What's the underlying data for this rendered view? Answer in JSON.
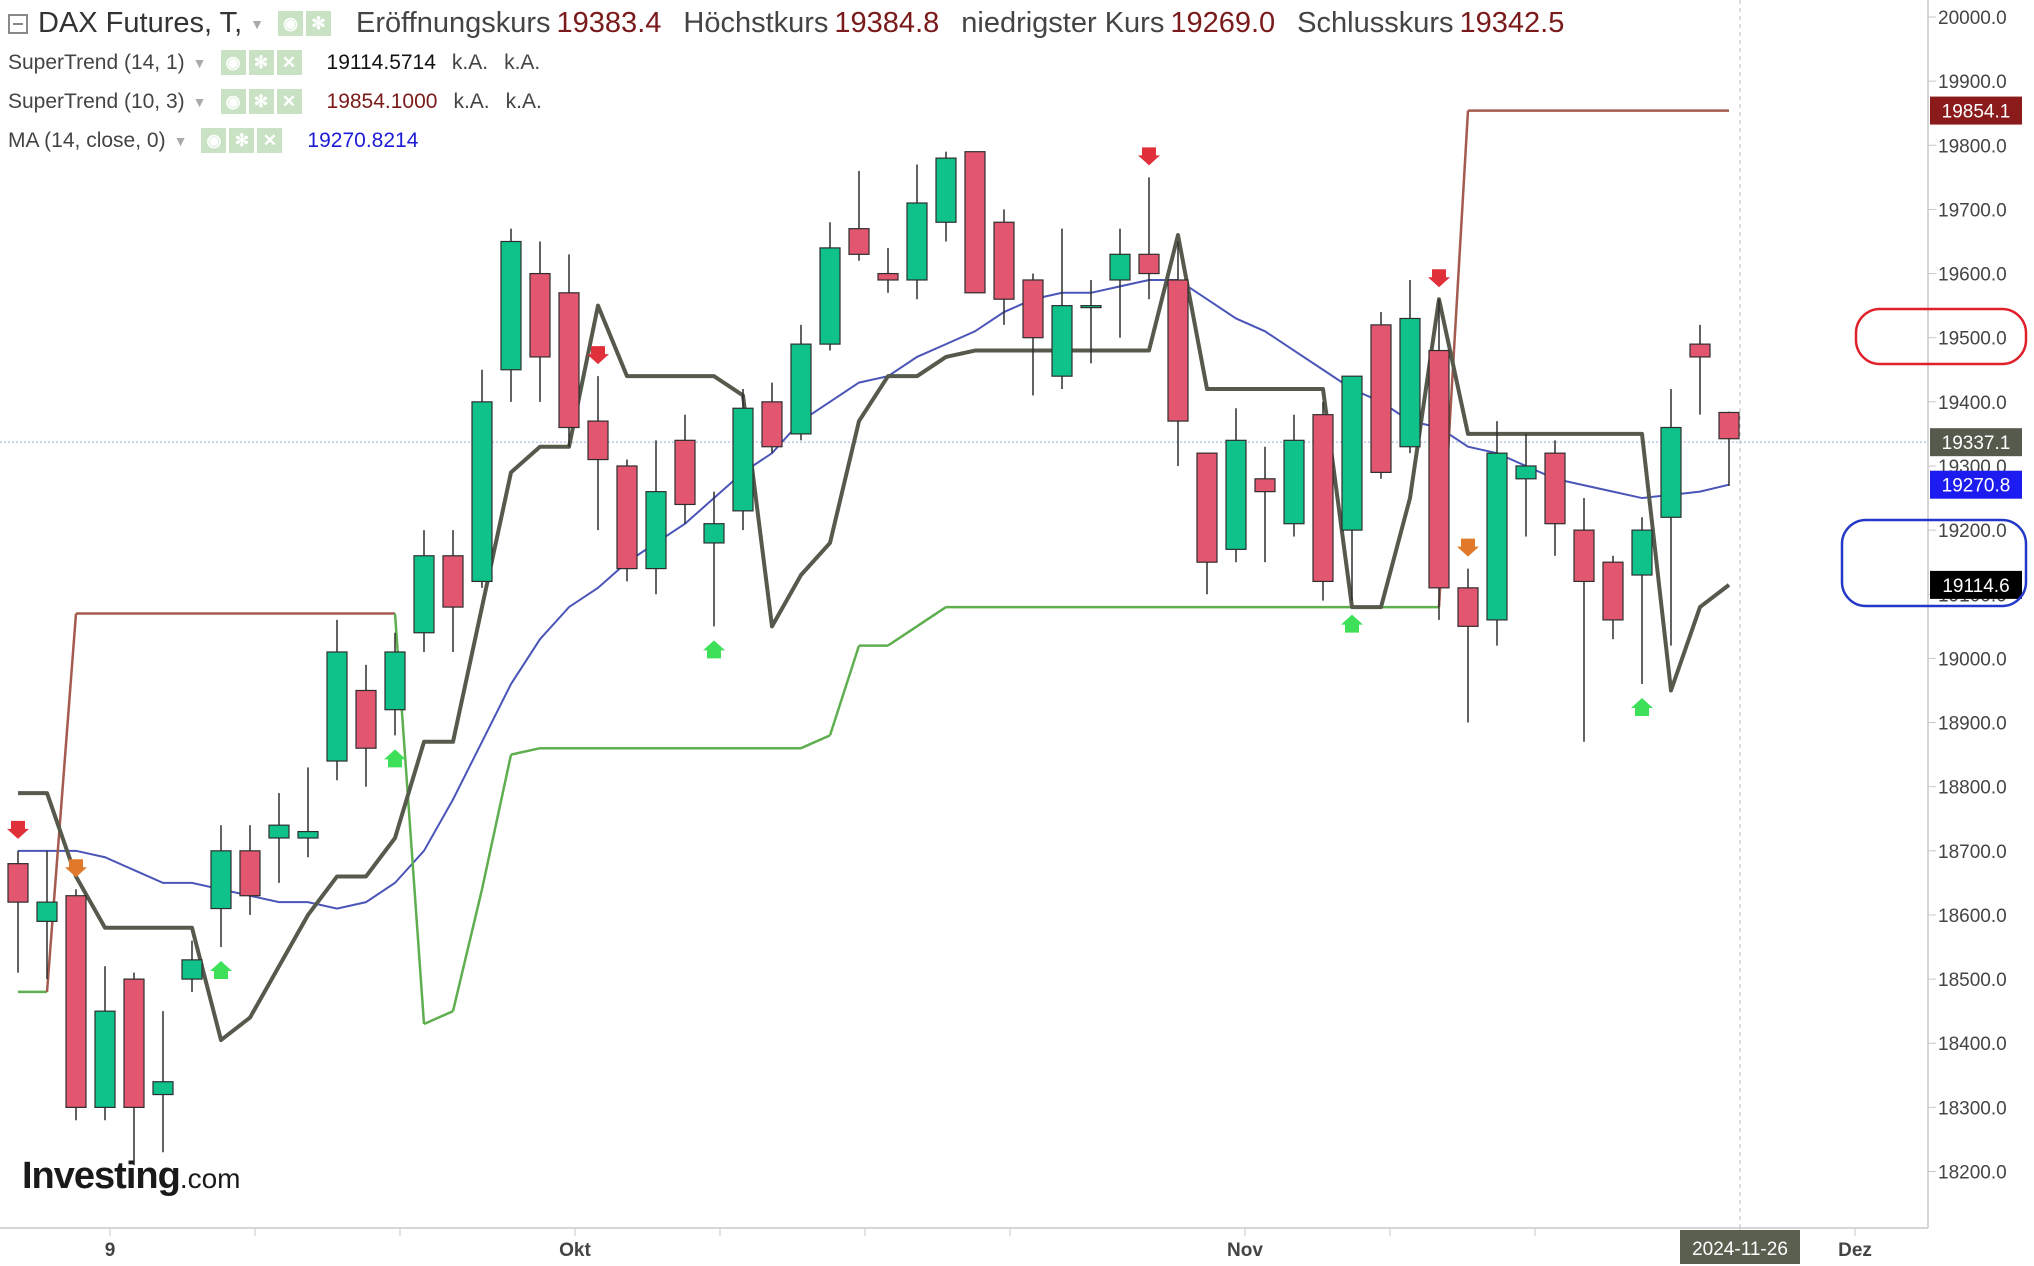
{
  "header": {
    "symbol_title": "DAX Futures, T,",
    "ohlc": [
      {
        "label": "Eröffnungskurs",
        "value": "19383.4"
      },
      {
        "label": "Höchstkurs",
        "value": "19384.8"
      },
      {
        "label": "niedrigster Kurs",
        "value": "19269.0"
      },
      {
        "label": "Schlusskurs",
        "value": "19342.5"
      }
    ]
  },
  "indicators": [
    {
      "label": "SuperTrend (14, 1)",
      "value": "19114.5714",
      "extra1": "k.A.",
      "extra2": "k.A.",
      "color": "#111111"
    },
    {
      "label": "SuperTrend (10, 3)",
      "value": "19854.1000",
      "extra1": "k.A.",
      "extra2": "k.A.",
      "color": "#7a1a1a"
    },
    {
      "label": "MA (14, close, 0)",
      "value": "19270.8214",
      "color": "#1c1cd6"
    }
  ],
  "icons": [
    "collapse-icon",
    "eye-icon",
    "gear-icon",
    "close-icon",
    "caret-down-icon"
  ],
  "logo": {
    "main": "Investing",
    "suffix": ".com"
  },
  "colors": {
    "up_candle": "#0ec28a",
    "down_candle": "#e2576f",
    "supertrend_fast": "#555a4c",
    "supertrend_slow_up": "#5fae4f",
    "supertrend_slow_down": "#a55a4f",
    "moving_average": "#4a55b8",
    "current_price": "#555a4c",
    "annotation_red": "#e0202a",
    "annotation_blue": "#2438c8"
  },
  "chart_data": {
    "type": "candlestick",
    "ylim": [
      18100,
      20100
    ],
    "y_ticks": [
      20000,
      19900,
      19800,
      19700,
      19600,
      19500,
      19400,
      19300,
      19200,
      19100,
      19000,
      18900,
      18800,
      18700,
      18600,
      18500,
      18400,
      18300,
      18200
    ],
    "y_tick_labels": [
      "20000.0",
      "19900.0",
      "19800.0",
      "19700.0",
      "19600.0",
      "19500.0",
      "19400.0",
      "19300.0",
      "19200.0",
      "19100.0",
      "19000.0",
      "18900.0",
      "18800.0",
      "18700.0",
      "18600.0",
      "18500.0",
      "18400.0",
      "18300.0",
      "18200.0"
    ],
    "x_tick_labels": [
      "9",
      "Okt",
      "Nov",
      "2024-11-26",
      "Dez"
    ],
    "price_tags": [
      {
        "value": 19854.1,
        "label": "19854.1",
        "color": "#8b1a1a"
      },
      {
        "value": 19337.1,
        "label": "19337.1",
        "color": "#555a4c"
      },
      {
        "value": 19270.8,
        "label": "19270.8",
        "color": "#1c1cf0"
      },
      {
        "value": 19114.6,
        "label": "19114.6",
        "color": "#000000"
      }
    ],
    "candles": [
      {
        "o": 18680,
        "h": 18700,
        "l": 18510,
        "c": 18620
      },
      {
        "o": 18590,
        "h": 18700,
        "l": 18500,
        "c": 18620
      },
      {
        "o": 18630,
        "h": 18640,
        "l": 18280,
        "c": 18300
      },
      {
        "o": 18300,
        "h": 18520,
        "l": 18280,
        "c": 18450
      },
      {
        "o": 18500,
        "h": 18510,
        "l": 18210,
        "c": 18300
      },
      {
        "o": 18320,
        "h": 18450,
        "l": 18230,
        "c": 18340
      },
      {
        "o": 18500,
        "h": 18560,
        "l": 18480,
        "c": 18530
      },
      {
        "o": 18610,
        "h": 18740,
        "l": 18550,
        "c": 18700
      },
      {
        "o": 18700,
        "h": 18740,
        "l": 18600,
        "c": 18630
      },
      {
        "o": 18720,
        "h": 18790,
        "l": 18650,
        "c": 18740
      },
      {
        "o": 18720,
        "h": 18830,
        "l": 18690,
        "c": 18730
      },
      {
        "o": 18840,
        "h": 19060,
        "l": 18810,
        "c": 19010
      },
      {
        "o": 18950,
        "h": 18990,
        "l": 18800,
        "c": 18860
      },
      {
        "o": 18920,
        "h": 19040,
        "l": 18880,
        "c": 19010
      },
      {
        "o": 19040,
        "h": 19200,
        "l": 19010,
        "c": 19160
      },
      {
        "o": 19160,
        "h": 19200,
        "l": 19010,
        "c": 19080
      },
      {
        "o": 19120,
        "h": 19450,
        "l": 19110,
        "c": 19400
      },
      {
        "o": 19450,
        "h": 19670,
        "l": 19400,
        "c": 19650
      },
      {
        "o": 19600,
        "h": 19650,
        "l": 19400,
        "c": 19470
      },
      {
        "o": 19570,
        "h": 19630,
        "l": 19330,
        "c": 19360
      },
      {
        "o": 19370,
        "h": 19440,
        "l": 19200,
        "c": 19310
      },
      {
        "o": 19300,
        "h": 19310,
        "l": 19120,
        "c": 19140
      },
      {
        "o": 19140,
        "h": 19340,
        "l": 19100,
        "c": 19260
      },
      {
        "o": 19340,
        "h": 19380,
        "l": 19210,
        "c": 19240
      },
      {
        "o": 19180,
        "h": 19260,
        "l": 19050,
        "c": 19210
      },
      {
        "o": 19230,
        "h": 19420,
        "l": 19200,
        "c": 19390
      },
      {
        "o": 19400,
        "h": 19430,
        "l": 19320,
        "c": 19330
      },
      {
        "o": 19350,
        "h": 19520,
        "l": 19340,
        "c": 19490
      },
      {
        "o": 19490,
        "h": 19680,
        "l": 19480,
        "c": 19640
      },
      {
        "o": 19670,
        "h": 19760,
        "l": 19620,
        "c": 19630
      },
      {
        "o": 19600,
        "h": 19640,
        "l": 19570,
        "c": 19590
      },
      {
        "o": 19590,
        "h": 19770,
        "l": 19560,
        "c": 19710
      },
      {
        "o": 19680,
        "h": 19790,
        "l": 19650,
        "c": 19780
      },
      {
        "o": 19790,
        "h": 19790,
        "l": 19580,
        "c": 19570
      },
      {
        "o": 19680,
        "h": 19700,
        "l": 19520,
        "c": 19560
      },
      {
        "o": 19590,
        "h": 19600,
        "l": 19410,
        "c": 19500
      },
      {
        "o": 19440,
        "h": 19670,
        "l": 19420,
        "c": 19550
      },
      {
        "o": 19550,
        "h": 19590,
        "l": 19460,
        "c": 19550
      },
      {
        "o": 19590,
        "h": 19670,
        "l": 19500,
        "c": 19630
      },
      {
        "o": 19630,
        "h": 19750,
        "l": 19560,
        "c": 19600
      },
      {
        "o": 19590,
        "h": 19650,
        "l": 19300,
        "c": 19370
      },
      {
        "o": 19320,
        "h": 19320,
        "l": 19100,
        "c": 19150
      },
      {
        "o": 19170,
        "h": 19390,
        "l": 19150,
        "c": 19340
      },
      {
        "o": 19280,
        "h": 19330,
        "l": 19150,
        "c": 19260
      },
      {
        "o": 19210,
        "h": 19380,
        "l": 19190,
        "c": 19340
      },
      {
        "o": 19380,
        "h": 19400,
        "l": 19090,
        "c": 19120
      },
      {
        "o": 19200,
        "h": 19420,
        "l": 19090,
        "c": 19440
      },
      {
        "o": 19520,
        "h": 19540,
        "l": 19280,
        "c": 19290
      },
      {
        "o": 19330,
        "h": 19590,
        "l": 19320,
        "c": 19530
      },
      {
        "o": 19480,
        "h": 19560,
        "l": 19060,
        "c": 19110
      },
      {
        "o": 19110,
        "h": 19140,
        "l": 18900,
        "c": 19050
      },
      {
        "o": 19060,
        "h": 19370,
        "l": 19020,
        "c": 19320
      },
      {
        "o": 19280,
        "h": 19350,
        "l": 19190,
        "c": 19300
      },
      {
        "o": 19320,
        "h": 19340,
        "l": 19160,
        "c": 19210
      },
      {
        "o": 19200,
        "h": 19250,
        "l": 18870,
        "c": 19120
      },
      {
        "o": 19150,
        "h": 19160,
        "l": 19030,
        "c": 19060
      },
      {
        "o": 19130,
        "h": 19220,
        "l": 18960,
        "c": 19200
      },
      {
        "o": 19220,
        "h": 19420,
        "l": 19020,
        "c": 19360
      },
      {
        "o": 19490,
        "h": 19520,
        "l": 19380,
        "c": 19470
      },
      {
        "o": 19383.4,
        "h": 19384.8,
        "l": 19269.0,
        "c": 19342.5
      }
    ],
    "series": [
      {
        "name": "SuperTrend (14, 1)",
        "values": [
          18790,
          18790,
          18660,
          18580,
          18580,
          18580,
          18580,
          18405,
          18440,
          18520,
          18600,
          18660,
          18660,
          18720,
          18870,
          18870,
          19080,
          19290,
          19330,
          19330,
          19550,
          19440,
          19440,
          19440,
          19440,
          19410,
          19050,
          19130,
          19180,
          19370,
          19440,
          19440,
          19470,
          19480,
          19480,
          19480,
          19480,
          19480,
          19480,
          19480,
          19660,
          19420,
          19420,
          19420,
          19420,
          19420,
          19080,
          19080,
          19250,
          19560,
          19350,
          19350,
          19350,
          19350,
          19350,
          19350,
          19350,
          18950,
          19080,
          19114.6
        ]
      },
      {
        "name": "SuperTrend (10, 3)",
        "values": [
          18480,
          18480,
          19070,
          19070,
          19070,
          19070,
          19070,
          19070,
          19070,
          19070,
          19070,
          19070,
          19070,
          19070,
          18430,
          18450,
          18640,
          18850,
          18860,
          18860,
          18860,
          18860,
          18860,
          18860,
          18860,
          18860,
          18860,
          18860,
          18880,
          19020,
          19020,
          19050,
          19080,
          19080,
          19080,
          19080,
          19080,
          19080,
          19080,
          19080,
          19080,
          19080,
          19080,
          19080,
          19080,
          19080,
          19080,
          19080,
          19080,
          19080,
          19854.1,
          19854.1,
          19854.1,
          19854.1,
          19854.1,
          19854.1,
          19854.1,
          19854.1,
          19854.1,
          19854.1
        ]
      },
      {
        "name": "MA (14, close, 0)",
        "values": [
          18700,
          18700,
          18700,
          18690,
          18670,
          18650,
          18650,
          18640,
          18630,
          18620,
          18620,
          18610,
          18620,
          18650,
          18700,
          18780,
          18870,
          18960,
          19030,
          19080,
          19110,
          19150,
          19180,
          19210,
          19250,
          19290,
          19320,
          19370,
          19400,
          19430,
          19440,
          19470,
          19490,
          19510,
          19540,
          19560,
          19570,
          19570,
          19580,
          19590,
          19590,
          19560,
          19530,
          19510,
          19480,
          19450,
          19420,
          19400,
          19370,
          19360,
          19330,
          19320,
          19300,
          19280,
          19270,
          19260,
          19250,
          19255,
          19260,
          19270.8
        ]
      }
    ]
  }
}
